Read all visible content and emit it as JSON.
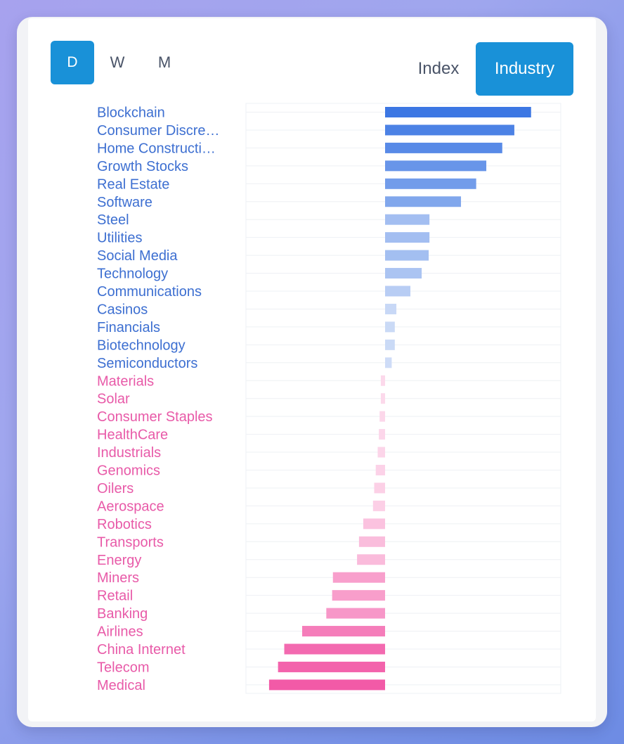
{
  "controls": {
    "periods": [
      {
        "label": "D",
        "active": true
      },
      {
        "label": "W",
        "active": false
      },
      {
        "label": "M",
        "active": false
      }
    ],
    "modes": [
      {
        "label": "Index",
        "active": false
      },
      {
        "label": "Industry",
        "active": true
      }
    ]
  },
  "colors": {
    "accent": "#1991d8",
    "positive_strong": "#3c77e3",
    "positive_weak": "#d8e3f8",
    "negative_strong": "#f25aa7",
    "negative_weak": "#fde0ef",
    "positive_label": "#3d6fd1",
    "negative_label": "#e85aa8",
    "grid": "#eef0f4"
  },
  "chart_data": {
    "type": "bar",
    "orientation": "horizontal",
    "title": "",
    "xlabel": "",
    "ylabel": "",
    "xlim": [
      -3.0,
      4.5
    ],
    "grid": true,
    "categories": [
      "Blockchain",
      "Consumer Discre…",
      "Home Constructi…",
      "Growth Stocks",
      "Real Estate",
      "Software",
      "Steel",
      "Utilities",
      "Social Media",
      "Technology",
      "Communications",
      "Casinos",
      "Financials",
      "Biotechnology",
      "Semiconductors",
      "Materials",
      "Solar",
      "Consumer Staples",
      "HealthCare",
      "Industrials",
      "Genomics",
      "Oilers",
      "Aerospace",
      "Robotics",
      "Transports",
      "Energy",
      "Miners",
      "Retail",
      "Banking",
      "Airlines",
      "China Internet",
      "Telecom",
      "Medical"
    ],
    "values": [
      3.75,
      3.32,
      3.01,
      2.6,
      2.34,
      1.95,
      1.14,
      1.14,
      1.12,
      0.94,
      0.65,
      0.29,
      0.25,
      0.25,
      0.17,
      -0.11,
      -0.11,
      -0.14,
      -0.16,
      -0.19,
      -0.24,
      -0.28,
      -0.31,
      -0.56,
      -0.67,
      -0.72,
      -1.34,
      -1.36,
      -1.51,
      -2.13,
      -2.59,
      -2.75,
      -2.98
    ]
  }
}
